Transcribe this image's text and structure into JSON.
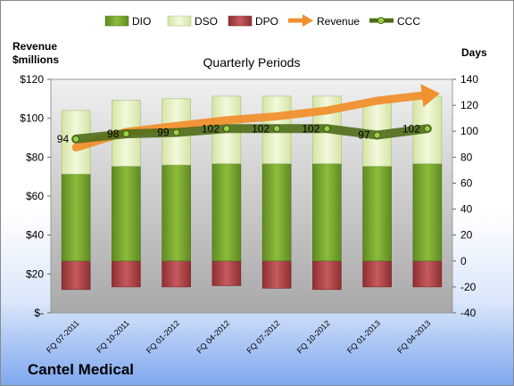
{
  "company": "Cantel Medical",
  "chart_data": {
    "type": "bar",
    "title": "Quarterly Periods",
    "categories": [
      "FQ 07-2011",
      "FQ 10-2011",
      "FQ 01-2012",
      "FQ 04-2012",
      "FQ 07-2012",
      "FQ 10-2012",
      "FQ 01-2013",
      "FQ 04-2013"
    ],
    "left_axis": {
      "label_line1": "Revenue",
      "label_line2": "$millions",
      "range": [
        0,
        120
      ],
      "ticks": [
        "$-",
        "$20",
        "$40",
        "$60",
        "$80",
        "$100",
        "$120"
      ]
    },
    "right_axis": {
      "label": "Days",
      "range": [
        -40,
        140
      ],
      "ticks": [
        "-40",
        "-20",
        "0",
        "20",
        "40",
        "60",
        "80",
        "100",
        "120",
        "140"
      ]
    },
    "legend": {
      "placement": "top",
      "entries": [
        "DIO",
        "DSO",
        "DPO",
        "Revenue",
        "CCC"
      ]
    },
    "series": [
      {
        "name": "DIO",
        "axis": "days",
        "color": "#78a830",
        "values": [
          67,
          73,
          74,
          75,
          75,
          75,
          73,
          75
        ]
      },
      {
        "name": "DSO",
        "axis": "days",
        "color": "#e8f2c4",
        "values": [
          49,
          51,
          51,
          52,
          52,
          52,
          51,
          52
        ]
      },
      {
        "name": "DPO",
        "axis": "days",
        "color": "#b5474a",
        "values": [
          -22,
          -20,
          -20,
          -19,
          -21,
          -22,
          -20,
          -20
        ]
      },
      {
        "name": "Revenue",
        "axis": "revenue",
        "color": "#f0902f",
        "values": [
          85,
          93,
          96,
          99,
          101,
          104,
          109,
          112
        ]
      },
      {
        "name": "CCC",
        "axis": "days",
        "color": "#4f6b1a",
        "values": [
          94,
          98,
          99,
          102,
          102,
          102,
          97,
          102
        ]
      }
    ],
    "data_labels": [
      "94",
      "98",
      "99",
      "102",
      "102",
      "102",
      "97",
      "102"
    ]
  }
}
